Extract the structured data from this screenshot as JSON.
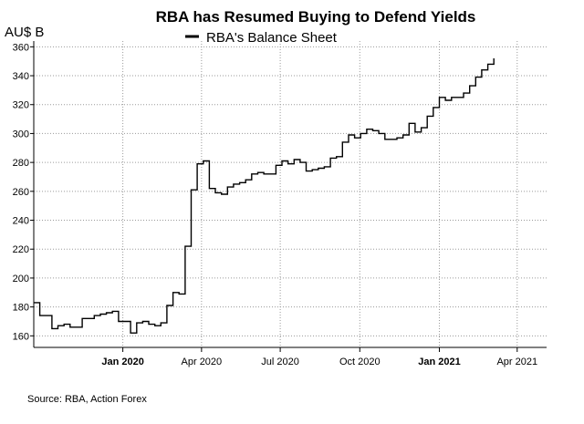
{
  "chart_data": {
    "type": "line",
    "title": "RBA has Resumed Buying to Defend Yields",
    "ylabel": "AU$ B",
    "xlabel": "",
    "source": "Source: RBA, Action Forex",
    "legend": [
      "RBA's Balance Sheet"
    ],
    "legend_position": "top-center",
    "grid": "dotted",
    "ylim": [
      152,
      364
    ],
    "yticks": [
      160,
      180,
      200,
      220,
      240,
      260,
      280,
      300,
      320,
      340,
      360
    ],
    "xlim": [
      "2019-09-20",
      "2021-05-05"
    ],
    "xticks": [
      {
        "date": "2020-01-01",
        "label": "Jan 2020",
        "bold": true
      },
      {
        "date": "2020-04-01",
        "label": "Apr 2020",
        "bold": false
      },
      {
        "date": "2020-07-01",
        "label": "Jul 2020",
        "bold": false
      },
      {
        "date": "2020-10-01",
        "label": "Oct 2020",
        "bold": false
      },
      {
        "date": "2021-01-01",
        "label": "Jan 2021",
        "bold": true
      },
      {
        "date": "2021-04-01",
        "label": "Apr 2021",
        "bold": false
      }
    ],
    "series": [
      {
        "name": "RBA's Balance Sheet",
        "color": "#000000",
        "x": [
          "2019-09-20",
          "2019-09-27",
          "2019-10-04",
          "2019-10-11",
          "2019-10-18",
          "2019-10-25",
          "2019-11-01",
          "2019-11-08",
          "2019-11-15",
          "2019-11-22",
          "2019-11-29",
          "2019-12-06",
          "2019-12-13",
          "2019-12-20",
          "2019-12-27",
          "2020-01-03",
          "2020-01-10",
          "2020-01-17",
          "2020-01-24",
          "2020-01-31",
          "2020-02-07",
          "2020-02-14",
          "2020-02-21",
          "2020-02-28",
          "2020-03-06",
          "2020-03-13",
          "2020-03-20",
          "2020-03-27",
          "2020-04-03",
          "2020-04-10",
          "2020-04-17",
          "2020-04-24",
          "2020-05-01",
          "2020-05-08",
          "2020-05-15",
          "2020-05-22",
          "2020-05-29",
          "2020-06-05",
          "2020-06-12",
          "2020-06-19",
          "2020-06-26",
          "2020-07-03",
          "2020-07-10",
          "2020-07-17",
          "2020-07-24",
          "2020-07-31",
          "2020-08-07",
          "2020-08-14",
          "2020-08-21",
          "2020-08-28",
          "2020-09-04",
          "2020-09-11",
          "2020-09-18",
          "2020-09-25",
          "2020-10-02",
          "2020-10-09",
          "2020-10-16",
          "2020-10-23",
          "2020-10-30",
          "2020-11-06",
          "2020-11-13",
          "2020-11-20",
          "2020-11-27",
          "2020-12-04",
          "2020-12-11",
          "2020-12-18",
          "2020-12-25",
          "2021-01-01",
          "2021-01-08",
          "2021-01-15",
          "2021-01-22",
          "2021-01-29",
          "2021-02-05",
          "2021-02-12",
          "2021-02-19",
          "2021-02-26",
          "2021-03-05"
        ],
        "values": [
          183,
          174,
          174,
          165,
          167,
          168,
          166,
          166,
          172,
          172,
          174,
          175,
          176,
          177,
          170,
          170,
          162,
          169,
          170,
          168,
          167,
          169,
          181,
          190,
          189,
          222,
          261,
          279,
          281,
          262,
          259,
          258,
          263,
          265,
          266,
          268,
          272,
          273,
          272,
          272,
          278,
          281,
          279,
          282,
          280,
          274,
          275,
          276,
          277,
          283,
          284,
          294,
          299,
          297,
          300,
          303,
          302,
          300,
          296,
          296,
          297,
          299,
          307,
          301,
          304,
          312,
          318,
          325,
          323,
          325,
          325,
          328,
          333,
          339,
          344,
          348,
          352
        ]
      }
    ]
  }
}
